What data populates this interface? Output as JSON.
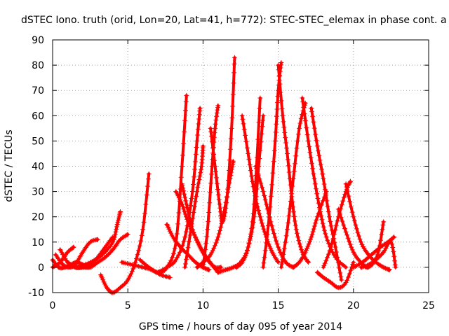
{
  "chart_data": {
    "type": "scatter",
    "title": "dSTEC Iono. truth (orid, Lon=20, Lat=41, h=772): STEC-STEC_elemax in phase cont. a",
    "xlabel": "GPS time / hours of day 095 of year 2014",
    "ylabel": "dSTEC  / TECUs",
    "xlim": [
      0,
      25
    ],
    "ylim": [
      -10,
      90
    ],
    "xticks": [
      0,
      5,
      10,
      15,
      20,
      25
    ],
    "yticks": [
      -10,
      0,
      10,
      20,
      30,
      40,
      50,
      60,
      70,
      80,
      90
    ],
    "grid": true,
    "marker": "+",
    "color": "#ff0000",
    "series": [
      {
        "x": [
          0.0,
          0.4,
          0.8,
          1.2,
          1.6,
          2.0
        ],
        "y": [
          3,
          0,
          0,
          1,
          2,
          1
        ]
      },
      {
        "x": [
          0.2,
          0.7,
          1.2,
          1.6,
          2.0,
          2.5,
          3.0
        ],
        "y": [
          5,
          1,
          0,
          2,
          6,
          10,
          11
        ]
      },
      {
        "x": [
          0.5,
          1.0,
          1.5,
          2.0,
          2.5,
          3.0,
          3.5,
          4.0
        ],
        "y": [
          7,
          2,
          0,
          0,
          1,
          4,
          8,
          12
        ]
      },
      {
        "x": [
          1.0,
          1.5,
          2.0,
          2.5,
          3.0,
          3.5,
          4.0,
          4.5,
          5.0
        ],
        "y": [
          2,
          0,
          0,
          0,
          2,
          4,
          7,
          11,
          13
        ]
      },
      {
        "x": [
          0.0,
          0.5,
          1.0,
          1.4
        ],
        "y": [
          0,
          2,
          6,
          8
        ]
      },
      {
        "x": [
          1.5,
          2.5,
          3.3,
          4.0,
          4.3,
          4.5
        ],
        "y": [
          0,
          2,
          5,
          10,
          17,
          22
        ]
      },
      {
        "x": [
          3.2,
          3.6,
          4.0,
          4.5,
          5.0,
          5.5,
          6.0,
          6.4
        ],
        "y": [
          -3,
          -8,
          -10,
          -8,
          -5,
          2,
          15,
          37
        ]
      },
      {
        "x": [
          4.6,
          5.3,
          6.0,
          6.6,
          7.2,
          7.8
        ],
        "y": [
          2,
          1,
          0,
          -1,
          -3,
          -4
        ]
      },
      {
        "x": [
          5.8,
          6.4,
          7.0,
          7.6,
          8.2,
          8.6,
          8.9
        ],
        "y": [
          3,
          0,
          -2,
          0,
          10,
          40,
          68
        ]
      },
      {
        "x": [
          7.0,
          7.6,
          8.2,
          8.8,
          9.3,
          9.6,
          9.8
        ],
        "y": [
          -2,
          0,
          3,
          12,
          30,
          50,
          63
        ]
      },
      {
        "x": [
          7.6,
          8.0,
          8.5,
          9.0,
          9.5,
          10.0,
          10.4
        ],
        "y": [
          17,
          12,
          8,
          5,
          2,
          0,
          -1
        ]
      },
      {
        "x": [
          8.2,
          8.6,
          9.0,
          9.5,
          10.0,
          10.6,
          11.0
        ],
        "y": [
          30,
          25,
          18,
          12,
          6,
          1,
          -2
        ]
      },
      {
        "x": [
          8.6,
          8.9,
          9.3,
          9.8,
          10.3,
          10.8,
          11.2
        ],
        "y": [
          33,
          25,
          15,
          8,
          3,
          0,
          0
        ]
      },
      {
        "x": [
          8.8,
          9.2,
          9.6,
          9.9,
          10.0
        ],
        "y": [
          0,
          15,
          30,
          40,
          48
        ]
      },
      {
        "x": [
          9.6,
          10.0,
          10.5,
          11.0,
          11.4,
          11.8,
          12.0
        ],
        "y": [
          0,
          2,
          5,
          12,
          22,
          35,
          42
        ]
      },
      {
        "x": [
          10.0,
          10.3,
          10.6,
          10.8,
          11.0
        ],
        "y": [
          0,
          15,
          40,
          55,
          64
        ]
      },
      {
        "x": [
          10.5,
          10.8,
          11.1,
          11.3,
          11.6,
          11.9,
          12.1
        ],
        "y": [
          55,
          40,
          25,
          18,
          28,
          55,
          83
        ]
      },
      {
        "x": [
          11.0,
          11.5,
          12.0,
          12.5,
          13.0,
          13.4,
          13.8
        ],
        "y": [
          -2,
          -1,
          0,
          2,
          8,
          25,
          67
        ]
      },
      {
        "x": [
          12.2,
          12.6,
          13.0,
          13.4,
          13.7,
          14.0
        ],
        "y": [
          0,
          2,
          8,
          20,
          40,
          60
        ]
      },
      {
        "x": [
          12.6,
          13.0,
          13.4,
          13.8,
          14.2,
          14.6,
          15.0
        ],
        "y": [
          60,
          45,
          30,
          20,
          12,
          6,
          2
        ]
      },
      {
        "x": [
          13.5,
          14.0,
          14.5,
          15.0,
          15.5,
          16.0
        ],
        "y": [
          40,
          30,
          18,
          8,
          2,
          0
        ]
      },
      {
        "x": [
          14.0,
          14.4,
          14.8,
          15.0,
          15.2
        ],
        "y": [
          0,
          20,
          50,
          70,
          81
        ]
      },
      {
        "x": [
          15.0,
          15.3,
          15.6,
          15.9,
          16.2,
          16.6,
          17.0
        ],
        "y": [
          80,
          60,
          45,
          28,
          15,
          6,
          2
        ]
      },
      {
        "x": [
          15.2,
          15.6,
          16.0,
          16.4,
          16.8
        ],
        "y": [
          0,
          15,
          35,
          55,
          65
        ]
      },
      {
        "x": [
          16.0,
          16.4,
          16.8,
          17.2,
          17.6,
          18.2
        ],
        "y": [
          0,
          2,
          6,
          12,
          20,
          30
        ]
      },
      {
        "x": [
          16.6,
          17.0,
          17.4,
          17.8,
          18.2,
          18.8,
          19.5
        ],
        "y": [
          67,
          50,
          35,
          22,
          12,
          4,
          0
        ]
      },
      {
        "x": [
          17.2,
          17.6,
          18.0,
          18.4,
          18.8,
          19.2
        ],
        "y": [
          63,
          48,
          35,
          20,
          8,
          -5
        ]
      },
      {
        "x": [
          17.6,
          18.0,
          18.5,
          19.0,
          19.5,
          20.0
        ],
        "y": [
          -2,
          -4,
          -6,
          -8,
          -6,
          2
        ]
      },
      {
        "x": [
          18.0,
          18.5,
          19.0,
          19.5,
          19.8
        ],
        "y": [
          0,
          8,
          20,
          30,
          34
        ]
      },
      {
        "x": [
          19.5,
          20.0,
          20.5,
          21.0,
          21.5,
          22.0,
          22.4
        ],
        "y": [
          33,
          20,
          10,
          5,
          2,
          0,
          -1
        ]
      },
      {
        "x": [
          19.0,
          19.5,
          20.0,
          20.5,
          21.0,
          21.6,
          22.0
        ],
        "y": [
          23,
          14,
          6,
          2,
          0,
          5,
          18
        ]
      },
      {
        "x": [
          20.0,
          20.6,
          21.2,
          21.8,
          22.3,
          22.7
        ],
        "y": [
          0,
          2,
          5,
          8,
          10,
          12
        ]
      },
      {
        "x": [
          20.5,
          21.0,
          21.5,
          22.0,
          22.5,
          22.8
        ],
        "y": [
          0,
          1,
          3,
          6,
          10,
          0
        ]
      }
    ]
  }
}
